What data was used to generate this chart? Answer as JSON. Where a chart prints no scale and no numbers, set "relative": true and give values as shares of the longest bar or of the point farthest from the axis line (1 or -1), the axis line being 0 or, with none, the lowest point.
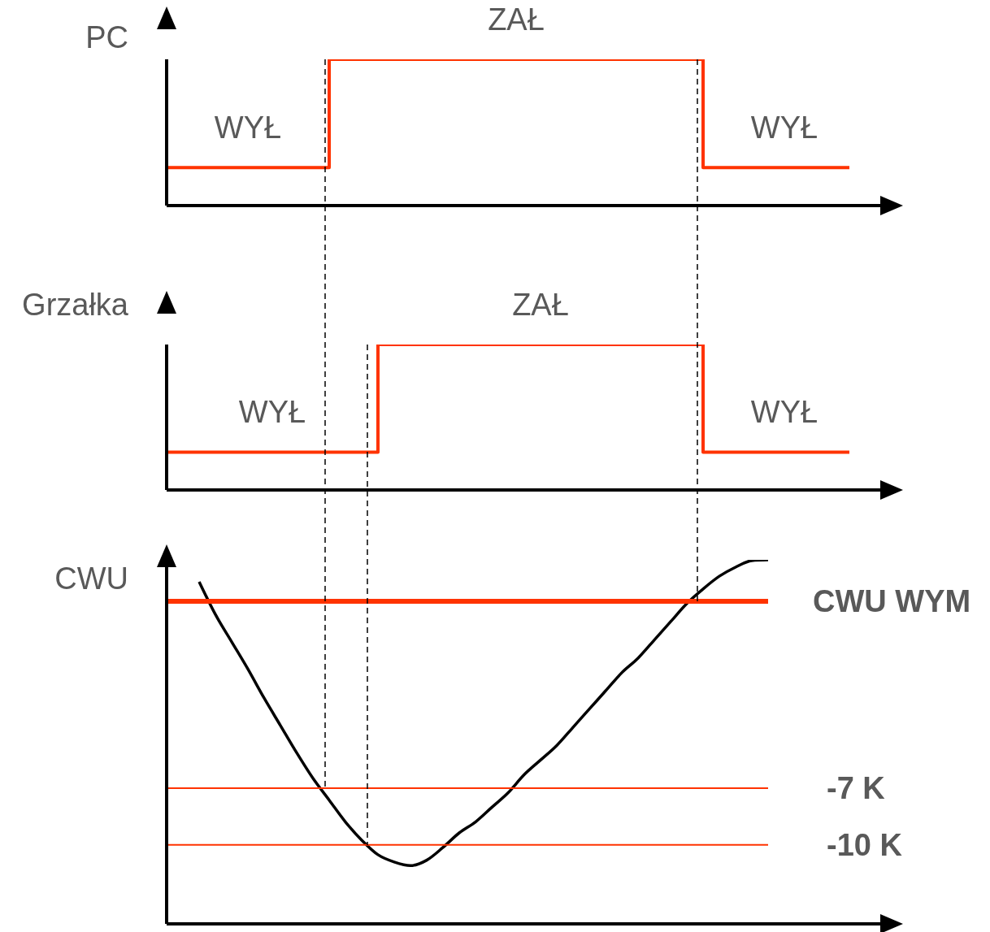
{
  "chart_data": [
    {
      "type": "step",
      "ylabel": "PC",
      "relative": true,
      "categories": [
        null,
        null,
        null,
        null,
        null,
        null,
        null,
        null,
        null,
        null,
        null,
        null,
        null,
        null,
        null,
        null,
        null,
        null,
        null,
        null,
        null,
        null,
        null,
        null,
        null,
        null,
        null,
        null,
        null,
        null,
        null,
        null,
        null,
        null,
        null,
        null,
        null,
        null,
        null,
        null,
        null,
        null,
        null,
        null,
        null
      ],
      "series": [
        {
          "color": "#ff3300",
          "values": [
            0.26,
            0.26,
            0.26,
            0.26,
            0.26,
            0.26,
            0.26,
            0.26,
            0.26,
            0.26,
            1,
            1,
            1,
            1,
            1,
            1,
            1,
            1,
            1,
            1,
            1,
            1,
            1,
            1,
            1,
            1,
            1,
            1,
            1,
            1,
            1,
            1,
            1,
            0.26,
            0.26,
            0.26,
            0.26,
            0.26,
            0.26,
            0.26,
            0.26,
            0.26,
            0.26,
            null,
            null
          ]
        }
      ],
      "annotations": [
        "WYŁ",
        "ZAŁ",
        "WYŁ"
      ]
    },
    {
      "type": "step",
      "ylabel": "Grzałka",
      "relative": true,
      "categories": [
        null,
        null,
        null,
        null,
        null,
        null,
        null,
        null,
        null,
        null,
        null,
        null,
        null,
        null,
        null,
        null,
        null,
        null,
        null,
        null,
        null,
        null,
        null,
        null,
        null,
        null,
        null,
        null,
        null,
        null,
        null,
        null,
        null,
        null,
        null,
        null,
        null,
        null,
        null,
        null,
        null,
        null,
        null,
        null,
        null
      ],
      "series": [
        {
          "color": "#ff3300",
          "values": [
            0.26,
            0.26,
            0.26,
            0.26,
            0.26,
            0.26,
            0.26,
            0.26,
            0.26,
            0.26,
            0.26,
            0.26,
            0.26,
            1,
            1,
            1,
            1,
            1,
            1,
            1,
            1,
            1,
            1,
            1,
            1,
            1,
            1,
            1,
            1,
            1,
            1,
            1,
            1,
            0.26,
            0.26,
            0.26,
            0.26,
            0.26,
            0.26,
            0.26,
            0.26,
            0.26,
            0.26,
            null,
            null
          ]
        }
      ],
      "annotations": [
        "WYŁ",
        "ZAŁ",
        "WYŁ"
      ]
    },
    {
      "type": "line",
      "ylabel": "CWU",
      "relative": true,
      "categories": [
        null,
        null,
        null,
        null,
        null,
        null,
        null,
        null,
        null,
        null,
        null,
        null,
        null,
        null,
        null,
        null,
        null,
        null,
        null,
        null,
        null,
        null,
        null,
        null,
        null,
        null,
        null,
        null,
        null,
        null,
        null,
        null,
        null,
        null,
        null,
        null,
        null,
        null,
        null,
        null,
        null,
        null,
        null,
        null,
        null
      ],
      "series": [
        {
          "color": "#000000",
          "values": [
            null,
            null,
            0.94,
            0.85,
            0.775,
            0.7,
            0.62,
            0.545,
            0.47,
            0.4,
            0.34,
            0.28,
            0.23,
            0.19,
            0.17,
            0.16,
            0.175,
            0.21,
            0.25,
            0.28,
            0.32,
            0.36,
            0.41,
            0.45,
            0.49,
            0.54,
            0.59,
            0.64,
            0.69,
            0.73,
            0.78,
            0.83,
            0.88,
            0.92,
            0.955,
            0.98,
            0.998,
            1,
            null,
            null,
            null,
            null,
            null,
            null,
            null
          ]
        }
      ],
      "ref_lines": [
        {
          "axis": "y",
          "value": 0.886,
          "label": "CWU WYM",
          "color": "#ff3300"
        },
        {
          "axis": "y",
          "value": 0.373,
          "label": "-7 K",
          "color": "#ff3300"
        },
        {
          "axis": "y",
          "value": 0.217,
          "label": "-10 K",
          "color": "#ff3300"
        }
      ]
    }
  ]
}
